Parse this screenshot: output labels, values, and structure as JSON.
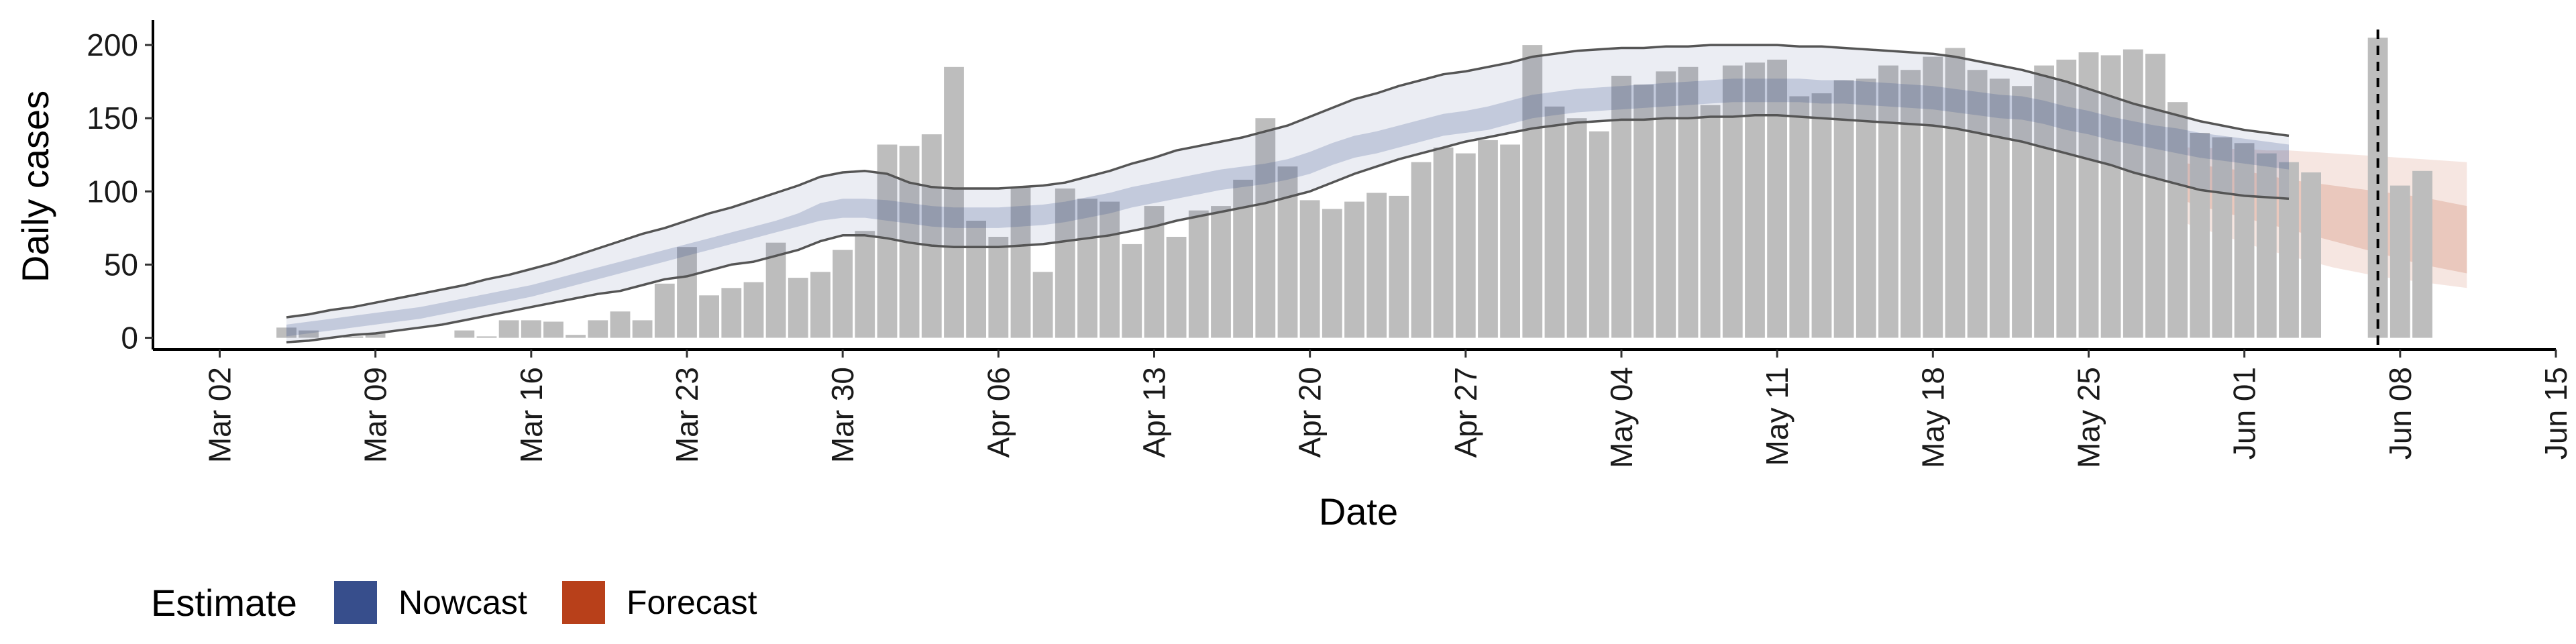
{
  "chart_data": {
    "type": "bar",
    "xlabel": "Date",
    "ylabel": "Daily cases",
    "x_ticks": [
      "Mar 02",
      "Mar 09",
      "Mar 16",
      "Mar 23",
      "Mar 30",
      "Apr 06",
      "Apr 13",
      "Apr 20",
      "Apr 27",
      "May 04",
      "May 11",
      "May 18",
      "May 25",
      "Jun 01",
      "Jun 08",
      "Jun 15"
    ],
    "y_ticks": [
      "0",
      "50",
      "100",
      "150",
      "200"
    ],
    "ylim": [
      -8,
      217
    ],
    "xlim": [
      "2020-02-28",
      "2020-06-15"
    ],
    "year": 2020,
    "grid": false,
    "legend_position": "bottom-left",
    "reference_line_date": "2020-06-07",
    "colors": {
      "bars": "#bdbdbd",
      "nowcast": "#374e8c",
      "forecast": "#b8401a",
      "outline": "#555555"
    },
    "observed": {
      "start_date": "2020-03-05",
      "values": [
        7,
        5,
        0,
        1,
        3,
        0,
        0,
        0,
        5,
        1,
        12,
        12,
        11,
        2,
        12,
        18,
        12,
        37,
        62,
        29,
        34,
        38,
        65,
        41,
        45,
        60,
        73,
        132,
        131,
        139,
        185,
        80,
        69,
        103,
        45,
        102,
        95,
        93,
        64,
        90,
        69,
        87,
        90,
        108,
        150,
        117,
        94,
        88,
        93,
        99,
        97,
        120,
        130,
        126,
        135,
        132,
        200,
        158,
        150,
        141,
        179,
        173,
        182,
        185,
        159,
        186,
        188,
        190,
        165,
        167,
        176,
        177,
        186,
        183,
        192,
        198,
        183,
        177,
        172,
        186,
        190,
        195,
        193,
        197,
        194,
        161,
        140,
        137,
        133,
        126,
        120,
        113,
        0,
        0,
        205,
        104,
        114
      ]
    },
    "series": [
      {
        "name": "Nowcast",
        "start_date": "2020-03-05",
        "median": [
          5,
          7,
          9,
          11,
          13,
          15,
          17,
          20,
          23,
          26,
          29,
          32,
          36,
          40,
          44,
          48,
          52,
          56,
          60,
          64,
          68,
          72,
          76,
          80,
          85,
          88,
          88,
          87,
          85,
          83,
          82,
          82,
          82,
          83,
          84,
          86,
          89,
          92,
          96,
          99,
          102,
          105,
          108,
          110,
          112,
          115,
          120,
          126,
          131,
          134,
          138,
          142,
          146,
          148,
          150,
          154,
          158,
          160,
          162,
          163,
          164,
          165,
          166,
          167,
          168,
          169,
          169,
          169,
          169,
          168,
          168,
          167,
          166,
          165,
          164,
          162,
          160,
          158,
          157,
          154,
          150,
          147,
          143,
          140,
          137,
          135,
          132,
          130,
          128,
          126,
          124
        ],
        "inner_low": [
          1,
          3,
          5,
          7,
          9,
          11,
          13,
          16,
          19,
          22,
          25,
          28,
          32,
          36,
          40,
          44,
          48,
          52,
          56,
          60,
          64,
          68,
          72,
          76,
          80,
          82,
          82,
          80,
          78,
          76,
          75,
          75,
          75,
          76,
          77,
          79,
          82,
          85,
          89,
          92,
          95,
          98,
          101,
          103,
          105,
          108,
          112,
          118,
          123,
          126,
          130,
          134,
          138,
          140,
          142,
          146,
          150,
          152,
          154,
          155,
          156,
          157,
          158,
          159,
          160,
          161,
          161,
          161,
          161,
          160,
          160,
          159,
          158,
          157,
          156,
          154,
          152,
          150,
          149,
          146,
          142,
          139,
          135,
          132,
          129,
          126,
          123,
          121,
          119,
          117,
          115
        ],
        "inner_high": [
          9,
          11,
          13,
          15,
          17,
          19,
          21,
          24,
          27,
          30,
          33,
          36,
          40,
          44,
          48,
          52,
          56,
          60,
          64,
          68,
          72,
          76,
          80,
          85,
          92,
          95,
          95,
          94,
          92,
          90,
          89,
          89,
          89,
          90,
          91,
          93,
          96,
          99,
          103,
          106,
          109,
          112,
          115,
          117,
          119,
          122,
          127,
          133,
          138,
          141,
          145,
          149,
          153,
          155,
          158,
          162,
          166,
          168,
          170,
          171,
          172,
          173,
          174,
          175,
          176,
          177,
          177,
          177,
          177,
          176,
          176,
          175,
          174,
          173,
          172,
          170,
          168,
          166,
          165,
          162,
          158,
          155,
          151,
          148,
          145,
          143,
          140,
          138,
          136,
          134,
          132
        ],
        "outer_low": [
          -3,
          -2,
          0,
          2,
          3,
          5,
          7,
          9,
          12,
          15,
          18,
          21,
          24,
          27,
          30,
          32,
          36,
          40,
          42,
          46,
          50,
          52,
          56,
          60,
          66,
          70,
          70,
          68,
          65,
          63,
          62,
          62,
          62,
          63,
          64,
          66,
          68,
          70,
          73,
          76,
          80,
          83,
          86,
          89,
          92,
          96,
          100,
          106,
          112,
          117,
          122,
          126,
          130,
          134,
          137,
          140,
          143,
          145,
          147,
          148,
          149,
          149,
          150,
          150,
          151,
          151,
          152,
          152,
          151,
          150,
          149,
          148,
          147,
          146,
          145,
          143,
          140,
          137,
          134,
          130,
          126,
          122,
          118,
          113,
          109,
          105,
          101,
          99,
          97,
          96,
          95
        ],
        "outer_high": [
          14,
          16,
          19,
          21,
          24,
          27,
          30,
          33,
          36,
          40,
          43,
          47,
          51,
          56,
          61,
          66,
          71,
          75,
          80,
          85,
          89,
          94,
          99,
          104,
          110,
          113,
          114,
          112,
          106,
          103,
          102,
          102,
          102,
          103,
          104,
          106,
          110,
          114,
          119,
          123,
          128,
          131,
          134,
          137,
          141,
          145,
          151,
          157,
          163,
          167,
          172,
          176,
          180,
          182,
          185,
          188,
          192,
          194,
          196,
          197,
          198,
          198,
          199,
          199,
          200,
          200,
          200,
          200,
          199,
          199,
          198,
          197,
          196,
          195,
          194,
          192,
          189,
          186,
          183,
          179,
          175,
          170,
          165,
          160,
          156,
          152,
          148,
          145,
          142,
          140,
          138
        ]
      },
      {
        "name": "Forecast",
        "start_date": "2020-05-29",
        "median": [
          108,
          104,
          101,
          98,
          95,
          92,
          89,
          86,
          83,
          80,
          76,
          72,
          69,
          65
        ],
        "inner_low": [
          95,
          90,
          86,
          82,
          78,
          74,
          70,
          66,
          62,
          58,
          54,
          50,
          47,
          44
        ],
        "inner_high": [
          120,
          118,
          116,
          114,
          111,
          108,
          106,
          104,
          102,
          100,
          98,
          96,
          93,
          90
        ],
        "outer_low": [
          80,
          75,
          70,
          65,
          60,
          56,
          52,
          48,
          45,
          42,
          40,
          38,
          36,
          34
        ],
        "outer_high": [
          130,
          130,
          129,
          129,
          128,
          128,
          127,
          126,
          125,
          124,
          123,
          122,
          121,
          120
        ]
      }
    ],
    "legend": {
      "title": "Estimate",
      "items": [
        "Nowcast",
        "Forecast"
      ]
    }
  }
}
